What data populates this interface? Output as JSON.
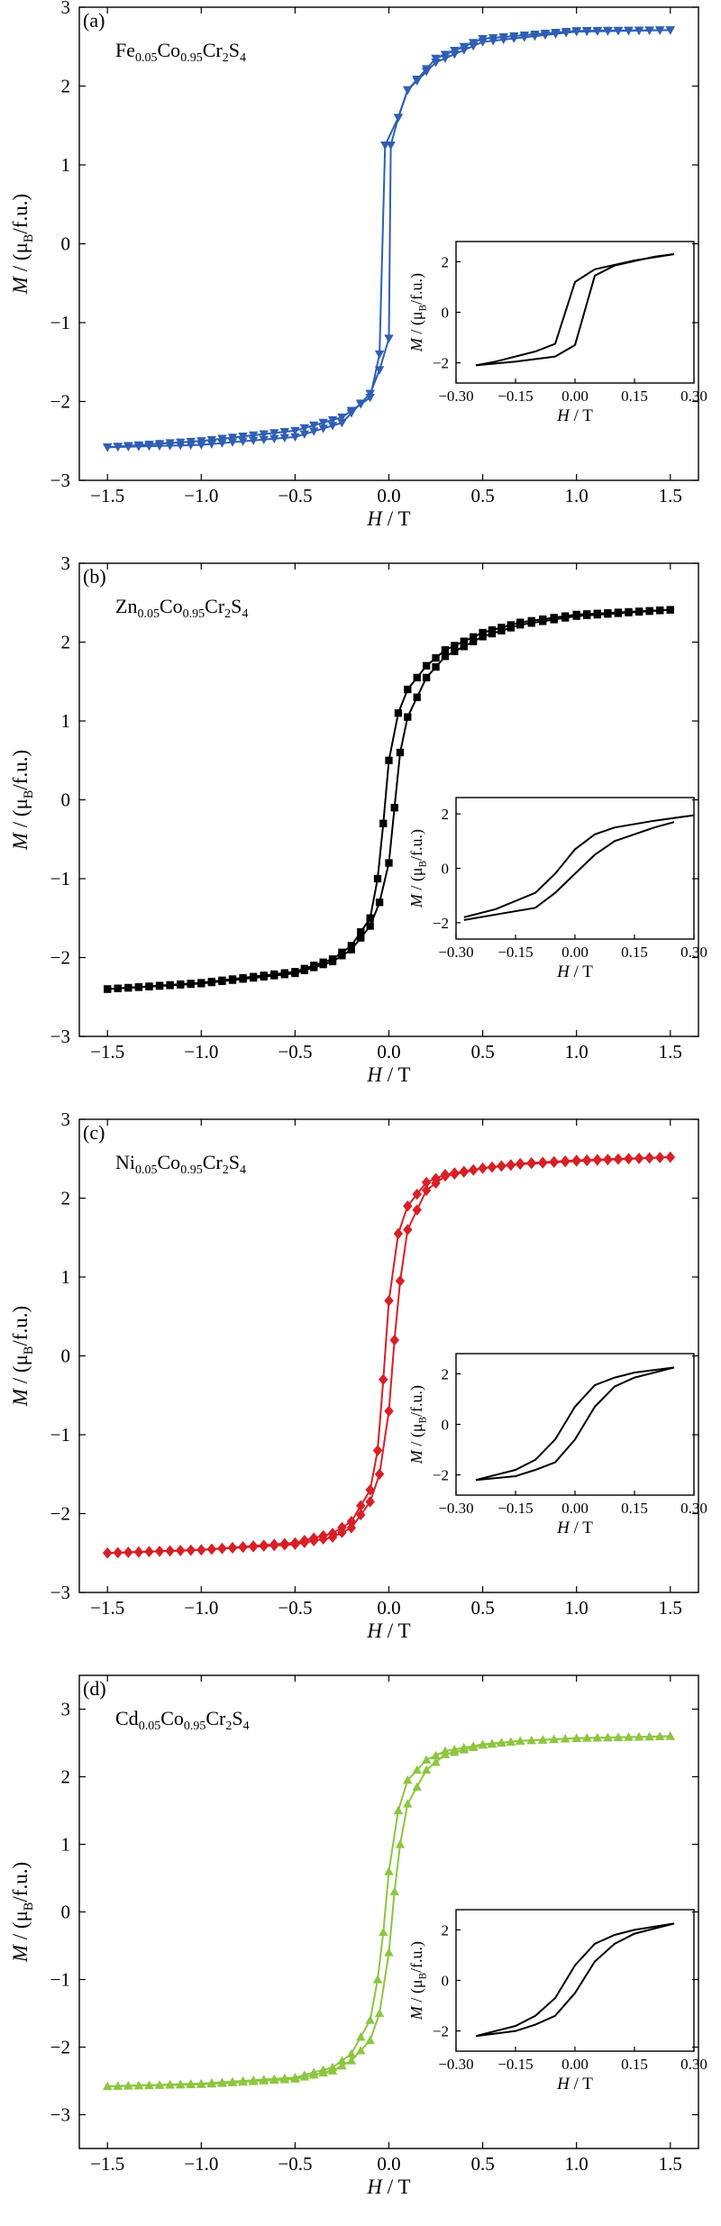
{
  "chart_data": [
    {
      "type": "line",
      "panel_label": "(a)",
      "compound": {
        "el": "Fe",
        "x": "0.05",
        "co": "Co",
        "y": "0.95",
        "rest": "Cr",
        "s": "2",
        "tail": "S",
        "t": "4"
      },
      "color": "#2f5fb3",
      "marker": "triangle-down",
      "xlabel": "H / T",
      "ylabel": "M / (μB/f.u.)",
      "xlim": [
        -1.65,
        1.65
      ],
      "ylim": [
        -3,
        3
      ],
      "xticks": [
        -1.5,
        -1.0,
        -0.5,
        0.0,
        0.5,
        1.0,
        1.5
      ],
      "yticks": [
        -3,
        -2,
        -1,
        0,
        1,
        2,
        3
      ],
      "series": [
        {
          "branch": "descending",
          "x": [
            1.5,
            1.0,
            0.5,
            0.25,
            0.1,
            0.05,
            -0.02,
            -0.05,
            -0.1,
            -0.25,
            -0.5,
            -1.0,
            -1.5
          ],
          "y": [
            2.71,
            2.69,
            2.56,
            2.3,
            1.95,
            1.6,
            1.25,
            -1.4,
            -1.95,
            -2.2,
            -2.37,
            -2.5,
            -2.58
          ]
        },
        {
          "branch": "ascending",
          "x": [
            -1.5,
            -1.0,
            -0.5,
            -0.25,
            -0.1,
            -0.05,
            0.0,
            0.01,
            0.05,
            0.1,
            0.25,
            0.5,
            1.0,
            1.5
          ],
          "y": [
            -2.58,
            -2.55,
            -2.45,
            -2.27,
            -1.9,
            -1.6,
            -1.2,
            1.25,
            1.6,
            1.95,
            2.35,
            2.6,
            2.7,
            2.71
          ]
        }
      ],
      "inset": {
        "xlim": [
          -0.3,
          0.3
        ],
        "ylim": [
          -2.8,
          2.8
        ],
        "xticks": [
          -0.3,
          -0.15,
          0.0,
          0.15,
          0.3
        ],
        "yticks": [
          -2,
          0,
          2
        ],
        "xlabel": "H / T",
        "ylabel": "M / (μB/f.u.)",
        "series": [
          {
            "x": [
              0.25,
              0.15,
              0.05,
              0.03,
              0.0,
              -0.05,
              -0.1,
              -0.2,
              -0.25
            ],
            "y": [
              2.3,
              2.05,
              1.7,
              1.5,
              1.2,
              -1.25,
              -1.55,
              -1.95,
              -2.1
            ]
          },
          {
            "x": [
              -0.25,
              -0.15,
              -0.05,
              0.0,
              0.05,
              0.1,
              0.2,
              0.25
            ],
            "y": [
              -2.1,
              -1.95,
              -1.75,
              -1.3,
              1.45,
              1.85,
              2.2,
              2.3
            ]
          }
        ]
      }
    },
    {
      "type": "line",
      "panel_label": "(b)",
      "compound": {
        "el": "Zn",
        "x": "0.05",
        "co": "Co",
        "y": "0.95",
        "rest": "Cr",
        "s": "2",
        "tail": "S",
        "t": "4"
      },
      "color": "#000000",
      "marker": "square",
      "xlabel": "H / T",
      "ylabel": "M / (μB/f.u.)",
      "xlim": [
        -1.65,
        1.65
      ],
      "ylim": [
        -3,
        3
      ],
      "xticks": [
        -1.5,
        -1.0,
        -0.5,
        0.0,
        0.5,
        1.0,
        1.5
      ],
      "yticks": [
        -3,
        -2,
        -1,
        0,
        1,
        2,
        3
      ],
      "series": [
        {
          "branch": "descending",
          "x": [
            1.5,
            1.0,
            0.7,
            0.5,
            0.3,
            0.2,
            0.1,
            0.05,
            0.0,
            -0.03,
            -0.06,
            -0.1,
            -0.2,
            -0.3,
            -0.5,
            -1.0,
            -1.5
          ],
          "y": [
            2.41,
            2.35,
            2.25,
            2.12,
            1.9,
            1.7,
            1.4,
            1.1,
            0.5,
            -0.3,
            -1.0,
            -1.5,
            -1.85,
            -2.02,
            -2.18,
            -2.32,
            -2.4
          ]
        },
        {
          "branch": "ascending",
          "x": [
            -1.5,
            -1.0,
            -0.5,
            -0.3,
            -0.2,
            -0.1,
            -0.05,
            0.0,
            0.03,
            0.06,
            0.1,
            0.2,
            0.3,
            0.5,
            0.7,
            1.0,
            1.5
          ],
          "y": [
            -2.4,
            -2.33,
            -2.2,
            -2.05,
            -1.9,
            -1.6,
            -1.3,
            -0.8,
            -0.1,
            0.6,
            1.05,
            1.55,
            1.82,
            2.07,
            2.22,
            2.33,
            2.41
          ]
        }
      ],
      "inset": {
        "xlim": [
          -0.3,
          0.3
        ],
        "ylim": [
          -2.6,
          2.6
        ],
        "xticks": [
          -0.3,
          -0.15,
          0.0,
          0.15,
          0.3
        ],
        "yticks": [
          -2,
          0,
          2
        ],
        "xlabel": "H / T",
        "ylabel": "M / (μB/f.u.)",
        "series": [
          {
            "x": [
              0.3,
              0.2,
              0.1,
              0.05,
              0.0,
              -0.05,
              -0.1,
              -0.2,
              -0.28
            ],
            "y": [
              1.95,
              1.75,
              1.5,
              1.25,
              0.7,
              -0.2,
              -0.9,
              -1.5,
              -1.8
            ]
          },
          {
            "x": [
              -0.28,
              -0.2,
              -0.1,
              -0.05,
              0.0,
              0.05,
              0.1,
              0.2,
              0.25
            ],
            "y": [
              -1.9,
              -1.7,
              -1.45,
              -0.9,
              -0.2,
              0.5,
              1.0,
              1.5,
              1.7
            ]
          }
        ]
      }
    },
    {
      "type": "line",
      "panel_label": "(c)",
      "compound": {
        "el": "Ni",
        "x": "0.05",
        "co": "Co",
        "y": "0.95",
        "rest": "Cr",
        "s": "2",
        "tail": "S",
        "t": "4"
      },
      "color": "#d81f26",
      "marker": "diamond",
      "xlabel": "H / T",
      "ylabel": "M / (μB/f.u.)",
      "xlim": [
        -1.65,
        1.65
      ],
      "ylim": [
        -3,
        3
      ],
      "xticks": [
        -1.5,
        -1.0,
        -0.5,
        0.0,
        0.5,
        1.0,
        1.5
      ],
      "yticks": [
        -3,
        -2,
        -1,
        0,
        1,
        2,
        3
      ],
      "series": [
        {
          "branch": "descending",
          "x": [
            1.5,
            1.0,
            0.7,
            0.5,
            0.3,
            0.2,
            0.1,
            0.05,
            0.0,
            -0.03,
            -0.06,
            -0.1,
            -0.2,
            -0.3,
            -0.5,
            -1.0,
            -1.5
          ],
          "y": [
            2.52,
            2.47,
            2.43,
            2.38,
            2.3,
            2.2,
            1.9,
            1.55,
            0.7,
            -0.3,
            -1.2,
            -1.7,
            -2.1,
            -2.25,
            -2.37,
            -2.46,
            -2.5
          ]
        },
        {
          "branch": "ascending",
          "x": [
            -1.5,
            -1.0,
            -0.5,
            -0.3,
            -0.2,
            -0.1,
            -0.05,
            0.0,
            0.03,
            0.06,
            0.1,
            0.2,
            0.3,
            0.5,
            0.7,
            1.0,
            1.5
          ],
          "y": [
            -2.5,
            -2.46,
            -2.39,
            -2.3,
            -2.18,
            -1.85,
            -1.5,
            -0.7,
            0.2,
            0.95,
            1.6,
            2.1,
            2.28,
            2.38,
            2.44,
            2.48,
            2.52
          ]
        }
      ],
      "inset": {
        "xlim": [
          -0.3,
          0.3
        ],
        "ylim": [
          -2.8,
          2.8
        ],
        "xticks": [
          -0.3,
          -0.15,
          0.0,
          0.15,
          0.3
        ],
        "yticks": [
          -2,
          0,
          2
        ],
        "xlabel": "H / T",
        "ylabel": "M / (μB/f.u.)",
        "series": [
          {
            "x": [
              0.25,
              0.15,
              0.1,
              0.05,
              0.0,
              -0.05,
              -0.1,
              -0.15,
              -0.25
            ],
            "y": [
              2.25,
              2.05,
              1.85,
              1.55,
              0.7,
              -0.6,
              -1.4,
              -1.8,
              -2.2
            ]
          },
          {
            "x": [
              -0.25,
              -0.15,
              -0.1,
              -0.05,
              0.0,
              0.05,
              0.1,
              0.15,
              0.25
            ],
            "y": [
              -2.2,
              -2.05,
              -1.8,
              -1.5,
              -0.6,
              0.7,
              1.5,
              1.85,
              2.25
            ]
          }
        ]
      }
    },
    {
      "type": "line",
      "panel_label": "(d)",
      "compound": {
        "el": "Cd",
        "x": "0.05",
        "co": "Co",
        "y": "0.95",
        "rest": "Cr",
        "s": "2",
        "tail": "S",
        "t": "4"
      },
      "color": "#8dc63f",
      "marker": "triangle-up",
      "xlabel": "H / T",
      "ylabel": "M / (μB/f.u.)",
      "xlim": [
        -1.65,
        1.65
      ],
      "ylim": [
        -3.5,
        3.5
      ],
      "xticks": [
        -1.5,
        -1.0,
        -0.5,
        0.0,
        0.5,
        1.0,
        1.5
      ],
      "yticks": [
        -3,
        -2,
        -1,
        0,
        1,
        2,
        3
      ],
      "series": [
        {
          "branch": "descending",
          "x": [
            1.5,
            1.0,
            0.7,
            0.5,
            0.3,
            0.2,
            0.1,
            0.05,
            0.0,
            -0.03,
            -0.06,
            -0.1,
            -0.2,
            -0.3,
            -0.5,
            -1.0,
            -1.5
          ],
          "y": [
            2.6,
            2.57,
            2.53,
            2.48,
            2.38,
            2.25,
            1.95,
            1.5,
            0.6,
            -0.3,
            -1.0,
            -1.6,
            -2.1,
            -2.3,
            -2.45,
            -2.54,
            -2.58
          ]
        },
        {
          "branch": "ascending",
          "x": [
            -1.5,
            -1.0,
            -0.5,
            -0.3,
            -0.2,
            -0.1,
            -0.05,
            0.0,
            0.03,
            0.06,
            0.1,
            0.2,
            0.3,
            0.5,
            0.7,
            1.0,
            1.5
          ],
          "y": [
            -2.58,
            -2.55,
            -2.47,
            -2.35,
            -2.2,
            -1.9,
            -1.5,
            -0.6,
            0.3,
            1.0,
            1.6,
            2.1,
            2.33,
            2.47,
            2.53,
            2.57,
            2.6
          ]
        }
      ],
      "inset": {
        "xlim": [
          -0.3,
          0.3
        ],
        "ylim": [
          -2.8,
          2.8
        ],
        "xticks": [
          -0.3,
          -0.15,
          0.0,
          0.15,
          0.3
        ],
        "yticks": [
          -2,
          0,
          2
        ],
        "xlabel": "H / T",
        "ylabel": "M / (μB/f.u.)",
        "series": [
          {
            "x": [
              0.25,
              0.15,
              0.1,
              0.05,
              0.0,
              -0.05,
              -0.1,
              -0.15,
              -0.25
            ],
            "y": [
              2.25,
              2.0,
              1.8,
              1.45,
              0.6,
              -0.7,
              -1.4,
              -1.8,
              -2.2
            ]
          },
          {
            "x": [
              -0.25,
              -0.15,
              -0.1,
              -0.05,
              0.0,
              0.05,
              0.1,
              0.15,
              0.25
            ],
            "y": [
              -2.2,
              -2.0,
              -1.75,
              -1.4,
              -0.5,
              0.75,
              1.45,
              1.85,
              2.25
            ]
          }
        ]
      }
    }
  ]
}
